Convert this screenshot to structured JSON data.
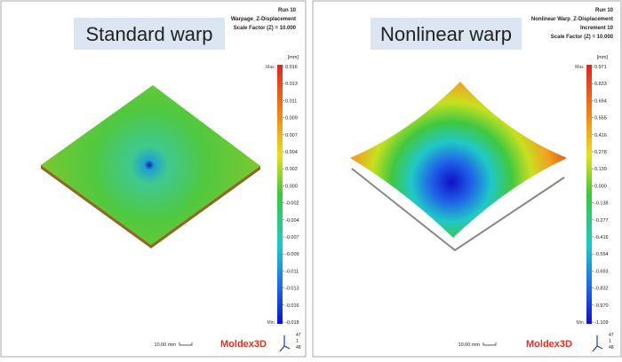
{
  "panels": [
    {
      "label": "Standard warp",
      "header": [
        "Run 10",
        "Warpage_Z-Displacement",
        "Scale Factor (Z) = 10.000"
      ],
      "unit": "[mm]",
      "max_label": "Max.",
      "min_label": "Min.",
      "ticks": [
        "0.016",
        "0.013",
        "0.011",
        "0.009",
        "0.007",
        "0.004",
        "0.002",
        "0.000",
        "-0.002",
        "-0.004",
        "-0.007",
        "-0.009",
        "-0.011",
        "-0.013",
        "-0.016",
        "-0.018"
      ],
      "scale": "10.00 mm",
      "logo": "Moldex3D",
      "triad": [
        "47",
        "1",
        "48"
      ]
    },
    {
      "label": "Nonlinear warp",
      "header": [
        "Run 10",
        "Nonlinear Warp_Z-Displacement",
        "Increment 10",
        "Scale Factor (Z) = 10.000"
      ],
      "unit": "[mm]",
      "max_label": "Max.",
      "min_label": "Min.",
      "ticks": [
        "0.971",
        "0.833",
        "0.694",
        "0.555",
        "0.416",
        "0.278",
        "0.139",
        "0.000",
        "-0.138",
        "-0.277",
        "-0.416",
        "-0.554",
        "-0.693",
        "-0.832",
        "-0.970",
        "-1.109"
      ],
      "scale": "10.00 mm",
      "logo": "Moldex3D",
      "triad": [
        "47",
        "1",
        "48"
      ]
    }
  ]
}
